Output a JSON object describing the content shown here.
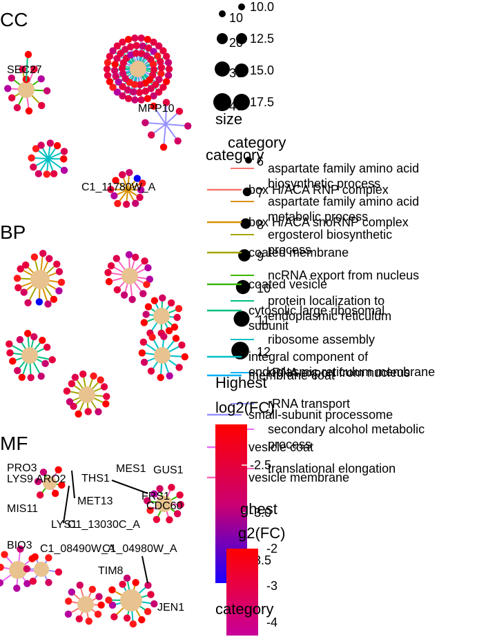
{
  "panels": [
    {
      "tag": "CC",
      "node_labels": [
        "SEC27",
        "MPP10",
        "C1_11780W_A"
      ]
    },
    {
      "tag": "BP",
      "node_labels": []
    },
    {
      "tag": "MF",
      "node_labels": [
        "PRO3",
        "LYS9",
        "ARO2",
        "MIS11",
        "MET13",
        "THS1",
        "MES1",
        "GUS1",
        "FRS1",
        "CDC60",
        "LYS1",
        "C1_13030C_A",
        "BIO3",
        "C1_08490W_A",
        "C1_04980W_A",
        "TIM8",
        "JEN1"
      ]
    }
  ],
  "legend_blocks": [
    {
      "title": "size",
      "values": [
        "10",
        "20",
        "30",
        "40"
      ]
    },
    {
      "title": "size",
      "values": [
        "10.0",
        "12.5",
        "15.0",
        "17.5"
      ]
    },
    {
      "title": "category",
      "values": [
        "6",
        "7",
        "8",
        "9",
        "10",
        "11",
        "12"
      ]
    },
    {
      "title": "category",
      "values": [
        "aspartate family amino acid biosynthetic process",
        "aspartate family amino acid metabolic process",
        "ergosterol biosynthetic process",
        "ncRNA export from nucleus",
        "protein localization to endoplasmic reticulum",
        "ribosome assembly",
        "rRNA export from nucleus",
        "rRNA transport",
        "secondary alcohol metabolic process",
        "translational elongation"
      ]
    },
    {
      "title": "category",
      "values": [
        "box H/ACA RNP complex",
        "box H/ACA snoRNP complex",
        "coated membrane",
        "coated vesicle",
        "cytosolic large ribosomal subunit",
        "integral component of endoplasmic reticulum membrane",
        "membrane coat",
        "small-subunit processome",
        "vesicle coat",
        "vesicle membrane"
      ]
    },
    {
      "title": "Highest log2(FC)",
      "values": [
        "-2.5",
        "-3.0",
        "-3.5"
      ]
    },
    {
      "title": "Highest log2(FC)",
      "values": [
        "-2",
        "-3",
        "-4"
      ]
    },
    {
      "title": "category",
      "values": []
    }
  ],
  "chart_data": {
    "type": "network",
    "panels": [
      "CC",
      "BP",
      "MF"
    ],
    "node_size_legend": [
      {
        "title": "size",
        "breaks": [
          10,
          20,
          30,
          40
        ]
      },
      {
        "title": "size",
        "breaks": [
          10.0,
          12.5,
          15.0,
          17.5
        ]
      }
    ],
    "edge_category_legend": [
      {
        "title": "category",
        "items": [
          "box H/ACA RNP complex",
          "box H/ACA snoRNP complex",
          "coated membrane",
          "coated vesicle",
          "cytosolic large ribosomal subunit",
          "integral component of endoplasmic reticulum membrane",
          "membrane coat",
          "small-subunit processome",
          "vesicle coat",
          "vesicle membrane"
        ]
      },
      {
        "title": "category",
        "items": [
          "aspartate family amino acid biosynthetic process",
          "aspartate family amino acid metabolic process",
          "ergosterol biosynthetic process",
          "ncRNA export from nucleus",
          "protein localization to endoplasmic reticulum",
          "ribosome assembly",
          "rRNA export from nucleus",
          "rRNA transport",
          "secondary alcohol metabolic process",
          "translational elongation"
        ]
      }
    ],
    "color_legend": [
      {
        "title": "Highest log2(FC)",
        "breaks": [
          -2.5,
          -3.0,
          -3.5
        ]
      },
      {
        "title": "Highest log2(FC)",
        "breaks": [
          -2,
          -3,
          -4
        ]
      }
    ],
    "colors": {
      "category_node": "#e8c38f",
      "fc_high": "#ff0000",
      "fc_mid": "#cc0066",
      "fc_low": "#0000ff",
      "edge_palette": [
        "#f8766d",
        "#d89000",
        "#a3a500",
        "#39b600",
        "#00bf7d",
        "#00bfc4",
        "#00b0f6",
        "#9590ff",
        "#e76bf3",
        "#ff62bc"
      ]
    }
  }
}
